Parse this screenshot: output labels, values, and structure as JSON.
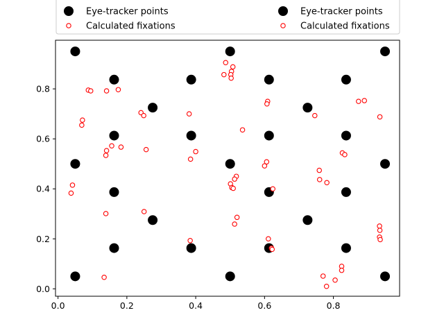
{
  "chart_data": {
    "type": "scatter",
    "xlim": [
      -0.0073,
      0.9923
    ],
    "ylim": [
      -0.0296,
      0.9946
    ],
    "xticks": [
      "0.0",
      "0.2",
      "0.4",
      "0.6",
      "0.8"
    ],
    "yticks": [
      "0.0",
      "0.2",
      "0.4",
      "0.6",
      "0.8"
    ],
    "grid": false,
    "legend_placement": "top, above axes (two identical legend groups: left and right)",
    "legend_entries": [
      "Eye-tracker points",
      "Calculated fixations"
    ],
    "series": [
      {
        "name": "Eye-tracker points",
        "marker": "filled-circle",
        "color": "#000000",
        "points": [
          [
            0.05,
            0.95
          ],
          [
            0.5,
            0.95
          ],
          [
            0.95,
            0.95
          ],
          [
            0.163,
            0.837
          ],
          [
            0.387,
            0.837
          ],
          [
            0.613,
            0.837
          ],
          [
            0.837,
            0.837
          ],
          [
            0.275,
            0.725
          ],
          [
            0.725,
            0.725
          ],
          [
            0.163,
            0.613
          ],
          [
            0.387,
            0.613
          ],
          [
            0.613,
            0.613
          ],
          [
            0.837,
            0.613
          ],
          [
            0.05,
            0.5
          ],
          [
            0.5,
            0.5
          ],
          [
            0.95,
            0.5
          ],
          [
            0.163,
            0.387
          ],
          [
            0.613,
            0.387
          ],
          [
            0.837,
            0.387
          ],
          [
            0.275,
            0.275
          ],
          [
            0.725,
            0.275
          ],
          [
            0.163,
            0.163
          ],
          [
            0.387,
            0.163
          ],
          [
            0.613,
            0.163
          ],
          [
            0.837,
            0.163
          ],
          [
            0.05,
            0.05
          ],
          [
            0.5,
            0.05
          ],
          [
            0.95,
            0.05
          ]
        ]
      },
      {
        "name": "Calculated fixations",
        "marker": "open-circle",
        "color": "#ff0000",
        "points": [
          [
            0.487,
            0.905
          ],
          [
            0.508,
            0.888
          ],
          [
            0.504,
            0.87
          ],
          [
            0.482,
            0.857
          ],
          [
            0.502,
            0.857
          ],
          [
            0.503,
            0.843
          ],
          [
            0.088,
            0.795
          ],
          [
            0.095,
            0.792
          ],
          [
            0.141,
            0.792
          ],
          [
            0.175,
            0.797
          ],
          [
            0.609,
            0.75
          ],
          [
            0.607,
            0.74
          ],
          [
            0.873,
            0.75
          ],
          [
            0.89,
            0.753
          ],
          [
            0.241,
            0.705
          ],
          [
            0.249,
            0.693
          ],
          [
            0.381,
            0.7
          ],
          [
            0.746,
            0.693
          ],
          [
            0.935,
            0.688
          ],
          [
            0.071,
            0.675
          ],
          [
            0.069,
            0.655
          ],
          [
            0.536,
            0.636
          ],
          [
            0.156,
            0.572
          ],
          [
            0.183,
            0.567
          ],
          [
            0.141,
            0.553
          ],
          [
            0.139,
            0.534
          ],
          [
            0.256,
            0.557
          ],
          [
            0.4,
            0.549
          ],
          [
            0.385,
            0.519
          ],
          [
            0.606,
            0.508
          ],
          [
            0.6,
            0.492
          ],
          [
            0.826,
            0.544
          ],
          [
            0.833,
            0.537
          ],
          [
            0.759,
            0.474
          ],
          [
            0.76,
            0.437
          ],
          [
            0.781,
            0.425
          ],
          [
            0.518,
            0.45
          ],
          [
            0.513,
            0.439
          ],
          [
            0.501,
            0.42
          ],
          [
            0.505,
            0.405
          ],
          [
            0.509,
            0.402
          ],
          [
            0.042,
            0.415
          ],
          [
            0.038,
            0.383
          ],
          [
            0.624,
            0.4
          ],
          [
            0.139,
            0.301
          ],
          [
            0.25,
            0.309
          ],
          [
            0.52,
            0.286
          ],
          [
            0.513,
            0.259
          ],
          [
            0.384,
            0.193
          ],
          [
            0.611,
            0.2
          ],
          [
            0.62,
            0.163
          ],
          [
            0.622,
            0.158
          ],
          [
            0.934,
            0.251
          ],
          [
            0.935,
            0.234
          ],
          [
            0.934,
            0.207
          ],
          [
            0.936,
            0.197
          ],
          [
            0.824,
            0.09
          ],
          [
            0.824,
            0.074
          ],
          [
            0.77,
            0.051
          ],
          [
            0.805,
            0.035
          ],
          [
            0.78,
            0.01
          ],
          [
            0.134,
            0.046
          ]
        ]
      }
    ]
  }
}
